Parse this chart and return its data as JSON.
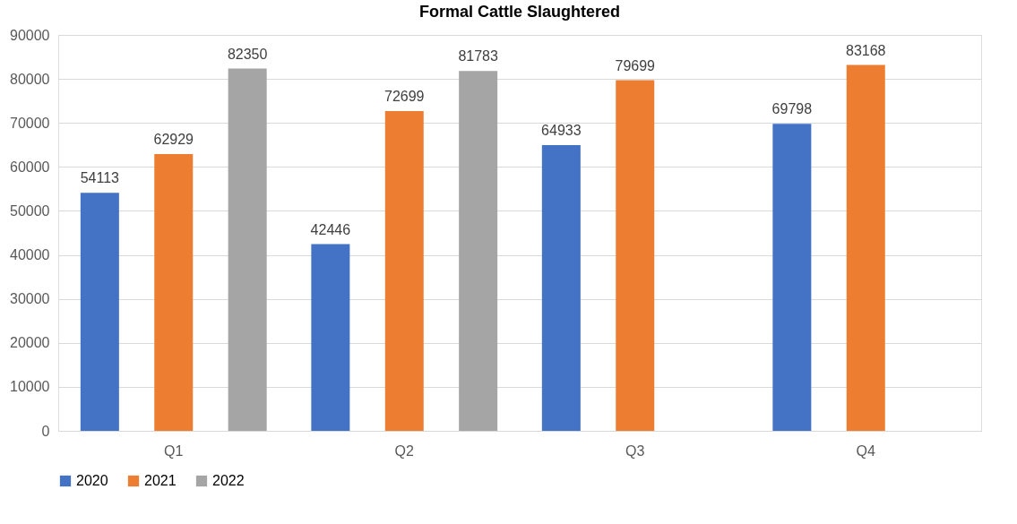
{
  "chart_data": {
    "type": "bar",
    "title": "Formal Cattle Slaughtered",
    "categories": [
      "Q1",
      "Q2",
      "Q3",
      "Q4"
    ],
    "series": [
      {
        "name": "2020",
        "color": "#4472c4",
        "values": [
          54113,
          42446,
          64933,
          69798
        ]
      },
      {
        "name": "2021",
        "color": "#ed7d31",
        "values": [
          62929,
          72699,
          79699,
          83168
        ]
      },
      {
        "name": "2022",
        "color": "#a5a5a5",
        "values": [
          82350,
          81783,
          null,
          null
        ]
      }
    ],
    "ylim": [
      0,
      90000
    ],
    "yticks": [
      0,
      10000,
      20000,
      30000,
      40000,
      50000,
      60000,
      70000,
      80000,
      90000
    ],
    "grid": "y",
    "legend": "bottom",
    "data_labels": true
  }
}
